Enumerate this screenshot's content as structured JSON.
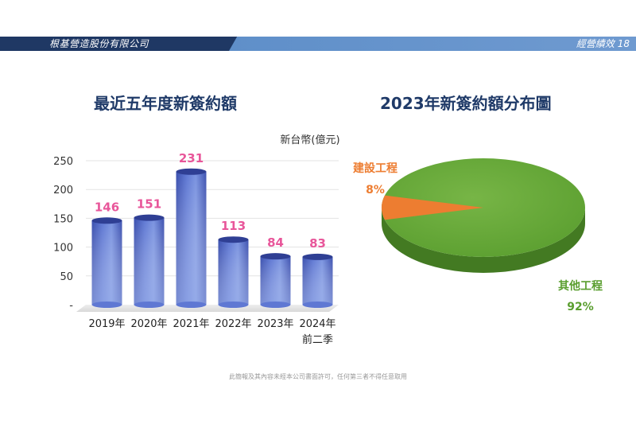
{
  "header": {
    "company": "根基營造股份有限公司",
    "section": "經營績效",
    "page_number": "18"
  },
  "footer": {
    "disclaimer": "此簡報及其內容未經本公司書面許可，任何第三者不得任意取用"
  },
  "colors": {
    "header_dark": "#1f3864",
    "header_light": "#6a97ce",
    "title": "#1f3a68",
    "bar_label": "#e8569a",
    "pie_main": "#5a9e2f",
    "pie_slice": "#ed7d31"
  },
  "chart_data": [
    {
      "type": "bar",
      "title": "最近五年度新簽約額",
      "unit": "新台幣(億元)",
      "categories": [
        [
          "2019年"
        ],
        [
          "2020年"
        ],
        [
          "2021年"
        ],
        [
          "2022年"
        ],
        [
          "2023年"
        ],
        [
          "2024年",
          "前二季"
        ]
      ],
      "values": [
        146,
        151,
        231,
        113,
        84,
        83
      ],
      "ylim": [
        0,
        250
      ],
      "yticks": [
        {
          "value": 0,
          "label": "-"
        },
        {
          "value": 50,
          "label": "50"
        },
        {
          "value": 100,
          "label": "100"
        },
        {
          "value": 150,
          "label": "150"
        },
        {
          "value": 200,
          "label": "200"
        },
        {
          "value": 250,
          "label": "250"
        }
      ],
      "grid": true
    },
    {
      "type": "pie",
      "title": "2023年新簽約額分布圖",
      "slices": [
        {
          "label": "建設工程",
          "value": 8,
          "value_label": "8%",
          "color": "#ed7d31"
        },
        {
          "label": "其他工程",
          "value": 92,
          "value_label": "92%",
          "color": "#5a9e2f"
        }
      ]
    }
  ]
}
